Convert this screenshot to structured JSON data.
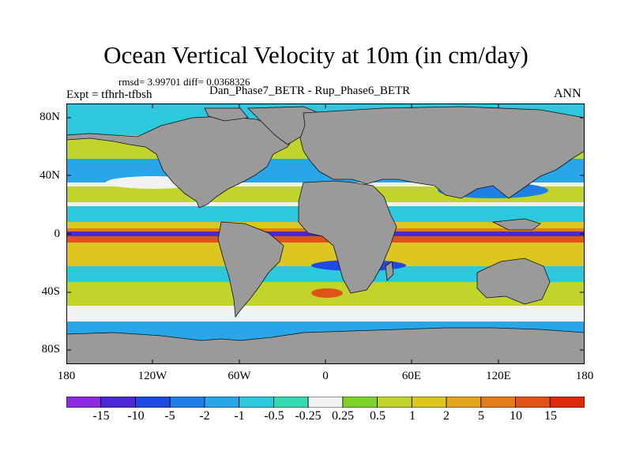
{
  "title": "Ocean Vertical Velocity at 10m (in cm/day)",
  "stats": "rmsd= 3.99701 diff= 0.0368326",
  "experiment": "Expt = tfhrh-tfbsh",
  "comparison": "Dan_Phase7_BETR - Rup_Phase6_BETR",
  "season": "ANN",
  "map": {
    "land_color": "#9a9a9a",
    "lat_labels": [
      "80N",
      "40N",
      "0",
      "40S",
      "80S"
    ],
    "lon_labels": [
      "180",
      "120W",
      "60W",
      "0",
      "60E",
      "120E",
      "180"
    ]
  },
  "colorbar": {
    "colors": [
      "#8a2be2",
      "#4b28d6",
      "#1f49e0",
      "#1e7fe6",
      "#27a6ea",
      "#2cc8dc",
      "#34d9b4",
      "#f2f2f2",
      "#7ed32a",
      "#c2d42c",
      "#ddc522",
      "#e5a51e",
      "#e47c19",
      "#e05316",
      "#e02a0c"
    ],
    "labels": [
      "-15",
      "-10",
      "-5",
      "-2",
      "-1",
      "-0.5",
      "-0.25",
      "0.25",
      "0.5",
      "1",
      "2",
      "5",
      "10",
      "15"
    ]
  }
}
